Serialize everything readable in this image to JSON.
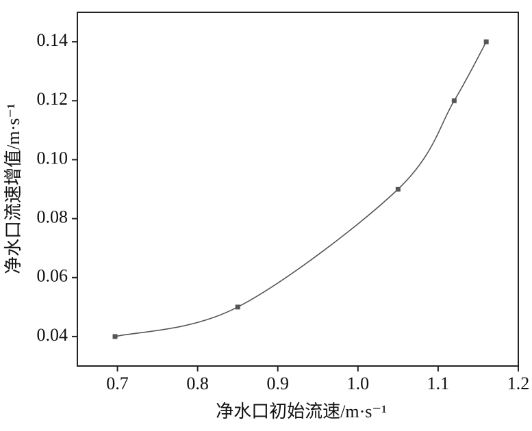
{
  "chart_data": {
    "type": "line",
    "x_label": "净水口初始流速/m·s⁻¹",
    "y_label": "净水口流速增值/m·s⁻¹",
    "x": [
      0.697,
      0.85,
      1.05,
      1.12,
      1.16
    ],
    "series": [
      {
        "color": "#555555",
        "values": [
          0.04,
          0.05,
          0.09,
          0.12,
          0.14
        ]
      }
    ],
    "xlim": [
      0.65,
      1.2
    ],
    "xticks": [
      0.7,
      0.8,
      0.9,
      {
        "value": 1,
        "label": "1.0"
      },
      1.1,
      1.2
    ],
    "ylim": [
      0.03,
      0.15
    ],
    "yticks": [
      0.04,
      0.06,
      0.08,
      {
        "value": 0.1,
        "label": "0.10"
      },
      0.12,
      0.14
    ]
  }
}
